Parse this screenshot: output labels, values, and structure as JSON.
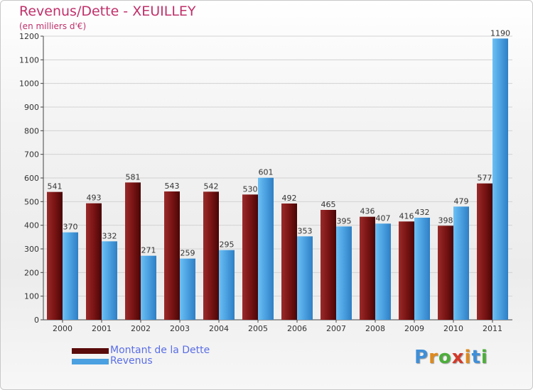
{
  "chart_data": {
    "type": "bar",
    "title": "Revenus/Dette - XEUILLEY",
    "subtitle": "(en milliers d'€)",
    "categories": [
      "2000",
      "2001",
      "2002",
      "2003",
      "2004",
      "2005",
      "2006",
      "2007",
      "2008",
      "2009",
      "2010",
      "2011"
    ],
    "series": [
      {
        "name": "Montant de la Dette",
        "color": "#7a1414",
        "values": [
          541,
          493,
          581,
          543,
          542,
          530,
          492,
          465,
          436,
          416,
          398,
          577
        ]
      },
      {
        "name": "Revenus",
        "color": "#4aa0e0",
        "values": [
          370,
          332,
          271,
          259,
          295,
          601,
          353,
          395,
          407,
          432,
          479,
          1190
        ]
      }
    ],
    "ylim": [
      0,
      1200
    ],
    "yticks": [
      0,
      100,
      200,
      300,
      400,
      500,
      600,
      700,
      800,
      900,
      1000,
      1100,
      1200
    ],
    "grid": true,
    "legend_position": "bottom-left"
  },
  "logo": {
    "text": "Proxiti"
  }
}
